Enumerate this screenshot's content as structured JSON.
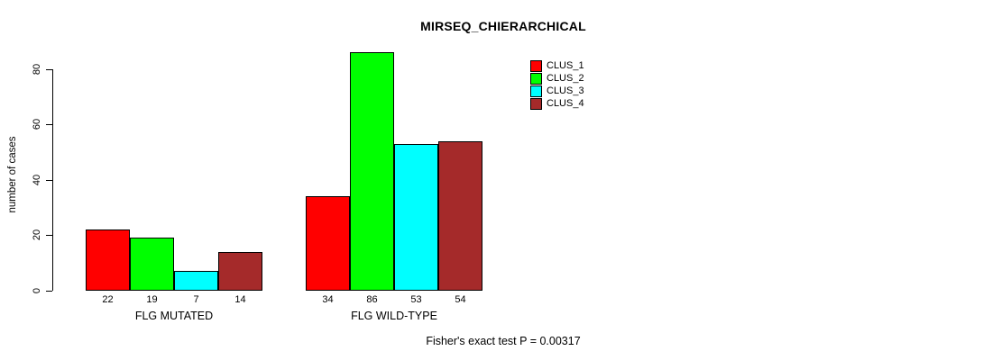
{
  "chart_data": {
    "type": "bar",
    "title": "MIRSEQ_CHIERARCHICAL",
    "categories": [
      "FLG MUTATED",
      "FLG WILD-TYPE"
    ],
    "series": [
      {
        "name": "CLUS_1",
        "color": "#FF0000",
        "values": [
          22,
          34
        ]
      },
      {
        "name": "CLUS_2",
        "color": "#00FF00",
        "values": [
          19,
          86
        ]
      },
      {
        "name": "CLUS_3",
        "color": "#00FFFF",
        "values": [
          7,
          53
        ]
      },
      {
        "name": "CLUS_4",
        "color": "#A52A2A",
        "values": [
          14,
          54
        ]
      }
    ],
    "xlabel": "",
    "ylabel": "number of cases",
    "ylim": [
      0,
      80
    ],
    "yticks": [
      0,
      20,
      40,
      60,
      80
    ],
    "grid": false,
    "bar_value_labels_shown": true,
    "legend_position": "inside-top-right-of-figure",
    "annotation": "Fisher's exact test P = 0.00317"
  }
}
